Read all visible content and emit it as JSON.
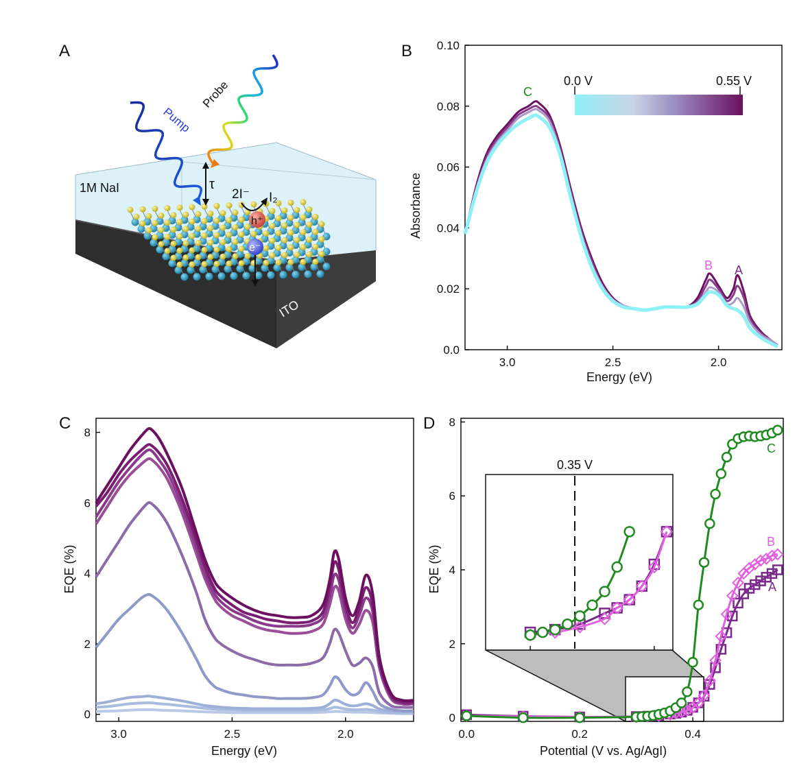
{
  "panels": {
    "A": "A",
    "B": "B",
    "C": "C",
    "D": "D"
  },
  "schematic": {
    "pump": "Pump",
    "probe": "Probe",
    "electrolyte": "1M NaI",
    "tau": "τ",
    "reactant": "2I⁻",
    "product": "I₂",
    "hole": "h⁺",
    "electron": "e⁻",
    "substrate": "ITO"
  },
  "colors": {
    "dark_purple": "#6b0f5f",
    "mid_purple": "#8d5a9e",
    "light_blue": "#9fb0d4",
    "cyan": "#8ff0f6",
    "green": "#1f8a1f",
    "magenta": "#e060e0",
    "violet": "#7a2a8a"
  },
  "chart_data": [
    {
      "type": "line",
      "panel": "B",
      "xlabel": "Energy (eV)",
      "ylabel": "Absorbance",
      "xlim": [
        3.2,
        1.7
      ],
      "ylim": [
        0.0,
        0.1
      ],
      "x_ticks": [
        "3.0",
        "2.5",
        "2.0"
      ],
      "y_ticks": [
        "0.0",
        "0.02",
        "0.04",
        "0.06",
        "0.08",
        "0.10"
      ],
      "colorbar": {
        "min_label": "0.0 V",
        "max_label": "0.55 V"
      },
      "annotations": [
        "C",
        "B",
        "A"
      ],
      "x": [
        3.2,
        3.15,
        3.1,
        3.05,
        3.0,
        2.95,
        2.9,
        2.87,
        2.85,
        2.8,
        2.75,
        2.7,
        2.65,
        2.6,
        2.55,
        2.5,
        2.45,
        2.4,
        2.35,
        2.3,
        2.25,
        2.2,
        2.15,
        2.1,
        2.06,
        2.04,
        2.0,
        1.96,
        1.93,
        1.91,
        1.88,
        1.85,
        1.8,
        1.75,
        1.72
      ],
      "series": [
        {
          "values": [
            0.038,
            0.053,
            0.064,
            0.07,
            0.074,
            0.078,
            0.08,
            0.0815,
            0.081,
            0.077,
            0.067,
            0.053,
            0.04,
            0.03,
            0.022,
            0.017,
            0.0145,
            0.0135,
            0.013,
            0.0135,
            0.014,
            0.014,
            0.014,
            0.017,
            0.023,
            0.025,
            0.021,
            0.017,
            0.02,
            0.0245,
            0.019,
            0.011,
            0.006,
            0.003,
            0.0015
          ]
        },
        {
          "values": [
            0.038,
            0.052,
            0.063,
            0.069,
            0.073,
            0.077,
            0.079,
            0.08,
            0.0795,
            0.076,
            0.066,
            0.052,
            0.039,
            0.029,
            0.021,
            0.0165,
            0.0145,
            0.0135,
            0.013,
            0.0135,
            0.014,
            0.014,
            0.014,
            0.016,
            0.021,
            0.023,
            0.02,
            0.016,
            0.018,
            0.021,
            0.017,
            0.01,
            0.0055,
            0.003,
            0.0015
          ]
        },
        {
          "values": [
            0.038,
            0.052,
            0.062,
            0.068,
            0.072,
            0.076,
            0.078,
            0.079,
            0.0785,
            0.075,
            0.065,
            0.051,
            0.038,
            0.028,
            0.021,
            0.0165,
            0.0145,
            0.0135,
            0.013,
            0.0135,
            0.014,
            0.014,
            0.014,
            0.0155,
            0.019,
            0.0205,
            0.019,
            0.015,
            0.0155,
            0.017,
            0.014,
            0.009,
            0.005,
            0.003,
            0.0015
          ]
        },
        {
          "values": [
            0.038,
            0.051,
            0.061,
            0.067,
            0.071,
            0.074,
            0.076,
            0.077,
            0.0765,
            0.073,
            0.064,
            0.05,
            0.037,
            0.027,
            0.02,
            0.016,
            0.014,
            0.0135,
            0.013,
            0.0135,
            0.014,
            0.014,
            0.014,
            0.015,
            0.018,
            0.019,
            0.018,
            0.0145,
            0.0135,
            0.013,
            0.011,
            0.007,
            0.004,
            0.002,
            0.001
          ]
        }
      ]
    },
    {
      "type": "line",
      "panel": "C",
      "xlabel": "Energy (eV)",
      "ylabel": "EQE (%)",
      "xlim": [
        3.1,
        1.7
      ],
      "ylim": [
        -0.2,
        8.4
      ],
      "x_ticks": [
        "3.0",
        "2.5",
        "2.0"
      ],
      "y_ticks": [
        "0",
        "2",
        "4",
        "6",
        "8"
      ],
      "x": [
        3.1,
        3.05,
        3.0,
        2.95,
        2.9,
        2.87,
        2.85,
        2.82,
        2.78,
        2.72,
        2.66,
        2.62,
        2.58,
        2.55,
        2.5,
        2.45,
        2.4,
        2.35,
        2.3,
        2.25,
        2.2,
        2.15,
        2.1,
        2.07,
        2.05,
        2.03,
        2.0,
        1.97,
        1.94,
        1.91,
        1.88,
        1.85,
        1.8,
        1.75,
        1.7
      ],
      "series": [
        {
          "values": [
            6.0,
            6.5,
            7.0,
            7.5,
            7.9,
            8.1,
            8.05,
            7.8,
            7.3,
            6.4,
            5.2,
            4.4,
            3.8,
            3.55,
            3.3,
            3.1,
            2.95,
            2.85,
            2.8,
            2.75,
            2.75,
            2.8,
            3.1,
            3.8,
            4.6,
            4.4,
            3.3,
            2.8,
            3.2,
            3.95,
            3.4,
            1.6,
            0.6,
            0.4,
            0.4
          ]
        },
        {
          "values": [
            5.9,
            6.3,
            6.8,
            7.2,
            7.5,
            7.65,
            7.6,
            7.4,
            7.0,
            6.1,
            5.0,
            4.2,
            3.6,
            3.35,
            3.1,
            2.9,
            2.8,
            2.7,
            2.65,
            2.6,
            2.6,
            2.65,
            2.9,
            3.6,
            4.3,
            4.1,
            3.1,
            2.6,
            3.0,
            3.6,
            3.1,
            1.5,
            0.55,
            0.35,
            0.35
          ]
        },
        {
          "values": [
            5.6,
            6.1,
            6.6,
            7.0,
            7.35,
            7.5,
            7.45,
            7.2,
            6.8,
            5.9,
            4.8,
            4.0,
            3.45,
            3.2,
            2.95,
            2.8,
            2.65,
            2.55,
            2.5,
            2.5,
            2.5,
            2.55,
            2.75,
            3.35,
            3.95,
            3.8,
            2.9,
            2.45,
            2.8,
            3.3,
            2.9,
            1.4,
            0.5,
            0.3,
            0.3
          ]
        },
        {
          "values": [
            5.4,
            5.9,
            6.4,
            6.8,
            7.1,
            7.25,
            7.2,
            7.0,
            6.6,
            5.7,
            4.6,
            3.85,
            3.3,
            3.05,
            2.8,
            2.65,
            2.5,
            2.4,
            2.35,
            2.3,
            2.3,
            2.35,
            2.55,
            3.1,
            3.6,
            3.5,
            2.7,
            2.3,
            2.55,
            2.95,
            2.6,
            1.3,
            0.45,
            0.3,
            0.3
          ]
        },
        {
          "values": [
            3.9,
            4.4,
            4.9,
            5.4,
            5.8,
            6.0,
            5.95,
            5.75,
            5.35,
            4.5,
            3.5,
            2.7,
            2.2,
            2.0,
            1.8,
            1.65,
            1.55,
            1.45,
            1.4,
            1.4,
            1.4,
            1.45,
            1.6,
            2.0,
            2.4,
            2.3,
            1.8,
            1.4,
            1.45,
            1.6,
            1.35,
            0.6,
            0.25,
            0.2,
            0.2
          ]
        },
        {
          "values": [
            1.9,
            2.3,
            2.7,
            3.0,
            3.3,
            3.4,
            3.35,
            3.2,
            2.9,
            2.3,
            1.6,
            1.1,
            0.8,
            0.7,
            0.6,
            0.55,
            0.5,
            0.48,
            0.45,
            0.45,
            0.45,
            0.47,
            0.55,
            0.8,
            1.05,
            1.0,
            0.7,
            0.55,
            0.62,
            0.9,
            0.65,
            0.3,
            0.15,
            0.1,
            0.1
          ]
        },
        {
          "values": [
            0.3,
            0.35,
            0.42,
            0.48,
            0.5,
            0.52,
            0.5,
            0.48,
            0.44,
            0.38,
            0.3,
            0.25,
            0.22,
            0.2,
            0.18,
            0.17,
            0.16,
            0.16,
            0.16,
            0.16,
            0.16,
            0.17,
            0.2,
            0.3,
            0.4,
            0.38,
            0.28,
            0.24,
            0.26,
            0.3,
            0.25,
            0.15,
            0.1,
            0.08,
            0.08
          ]
        },
        {
          "values": [
            0.2,
            0.22,
            0.26,
            0.3,
            0.32,
            0.33,
            0.32,
            0.3,
            0.28,
            0.24,
            0.2,
            0.17,
            0.15,
            0.14,
            0.13,
            0.12,
            0.12,
            0.12,
            0.12,
            0.12,
            0.12,
            0.12,
            0.13,
            0.16,
            0.2,
            0.19,
            0.15,
            0.13,
            0.13,
            0.14,
            0.12,
            0.08,
            0.05,
            0.04,
            0.04
          ]
        },
        {
          "values": [
            0.08,
            0.09,
            0.1,
            0.12,
            0.13,
            0.13,
            0.13,
            0.12,
            0.11,
            0.1,
            0.08,
            0.07,
            0.06,
            0.06,
            0.05,
            0.05,
            0.05,
            0.05,
            0.05,
            0.05,
            0.05,
            0.05,
            0.06,
            0.07,
            0.08,
            0.08,
            0.07,
            0.06,
            0.06,
            0.06,
            0.05,
            0.04,
            0.03,
            0.02,
            0.02
          ]
        }
      ]
    },
    {
      "type": "scatter",
      "panel": "D",
      "xlabel": "Potential (V vs. Ag/AgI)",
      "ylabel": "EQE (%)",
      "xlim": [
        -0.01,
        0.56
      ],
      "ylim": [
        -0.1,
        8.1
      ],
      "x_ticks": [
        "0.0",
        "0.2",
        "0.4"
      ],
      "y_ticks": [
        "0",
        "2",
        "4",
        "6",
        "8"
      ],
      "series": [
        {
          "name": "C",
          "x": [
            0.0,
            0.1,
            0.2,
            0.3,
            0.31,
            0.32,
            0.33,
            0.34,
            0.35,
            0.36,
            0.37,
            0.38,
            0.39,
            0.4,
            0.41,
            0.42,
            0.43,
            0.44,
            0.45,
            0.46,
            0.47,
            0.48,
            0.49,
            0.5,
            0.51,
            0.52,
            0.53,
            0.54,
            0.55
          ],
          "values": [
            0.05,
            0.0,
            0.0,
            0.02,
            0.03,
            0.04,
            0.06,
            0.09,
            0.13,
            0.18,
            0.27,
            0.4,
            0.7,
            1.5,
            3.05,
            4.2,
            5.25,
            6.05,
            6.6,
            7.05,
            7.4,
            7.55,
            7.6,
            7.62,
            7.6,
            7.62,
            7.65,
            7.7,
            7.78
          ]
        },
        {
          "name": "B",
          "x": [
            0.0,
            0.1,
            0.2,
            0.3,
            0.32,
            0.34,
            0.36,
            0.37,
            0.38,
            0.39,
            0.4,
            0.41,
            0.42,
            0.43,
            0.44,
            0.45,
            0.46,
            0.47,
            0.48,
            0.49,
            0.5,
            0.51,
            0.52,
            0.53,
            0.54,
            0.55
          ],
          "values": [
            0.05,
            0.03,
            0.02,
            0.02,
            0.03,
            0.05,
            0.08,
            0.12,
            0.15,
            0.2,
            0.27,
            0.4,
            0.6,
            1.0,
            1.55,
            2.2,
            2.8,
            3.3,
            3.65,
            3.9,
            4.05,
            4.15,
            4.25,
            4.3,
            4.38,
            4.42
          ]
        },
        {
          "name": "A",
          "x": [
            0.0,
            0.1,
            0.2,
            0.3,
            0.32,
            0.34,
            0.36,
            0.37,
            0.38,
            0.39,
            0.4,
            0.41,
            0.42,
            0.43,
            0.44,
            0.45,
            0.46,
            0.47,
            0.48,
            0.49,
            0.5,
            0.51,
            0.52,
            0.53,
            0.54,
            0.55
          ],
          "values": [
            0.08,
            0.04,
            0.02,
            0.03,
            0.04,
            0.06,
            0.1,
            0.12,
            0.15,
            0.2,
            0.28,
            0.4,
            0.58,
            0.9,
            1.35,
            1.85,
            2.3,
            2.75,
            3.1,
            3.35,
            3.5,
            3.6,
            3.7,
            3.8,
            3.9,
            4.0
          ]
        }
      ],
      "inset": {
        "marker_label": "0.35 V",
        "marker_x": 0.35
      }
    }
  ]
}
